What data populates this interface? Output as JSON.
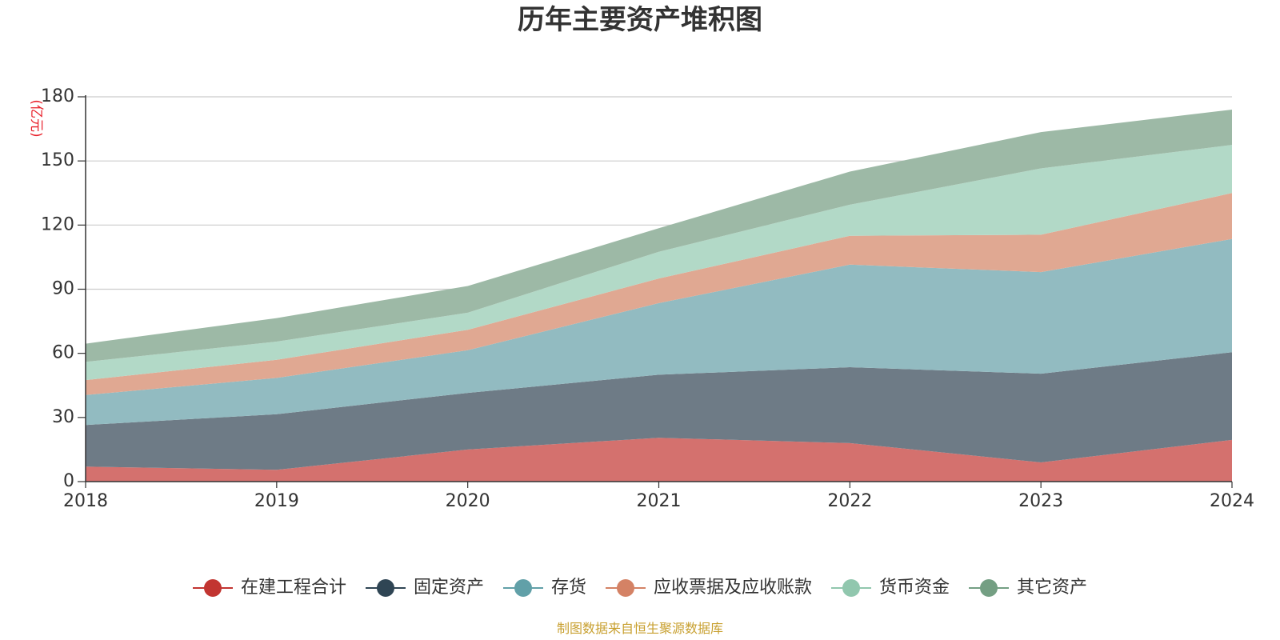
{
  "chart_data": {
    "type": "area",
    "stacked": true,
    "title": "历年主要资产堆积图",
    "ylabel": "(亿元)",
    "xlabel": "",
    "ylim": [
      0,
      180
    ],
    "yticks": [
      "0",
      "30",
      "60",
      "90",
      "120",
      "150",
      "180"
    ],
    "categories": [
      "2018",
      "2019",
      "2020",
      "2021",
      "2022",
      "2023",
      "2024"
    ],
    "series": [
      {
        "name": "在建工程合计",
        "color": "#c23531",
        "fill": "#d4716e",
        "values": [
          7,
          5.5,
          15,
          20.5,
          18,
          9,
          19.5
        ]
      },
      {
        "name": "固定资产",
        "color": "#2f4554",
        "fill": "#6e7b86",
        "values": [
          19.5,
          26,
          26.5,
          29.5,
          35.5,
          41.5,
          41
        ]
      },
      {
        "name": "存货",
        "color": "#61a0a8",
        "fill": "#92bbc1",
        "values": [
          14,
          17,
          20,
          33.5,
          48,
          47.5,
          53
        ]
      },
      {
        "name": "应收票据及应收账款",
        "color": "#d48265",
        "fill": "#e0a892",
        "values": [
          7,
          8.5,
          9.5,
          11.5,
          13.5,
          17.5,
          21.5
        ]
      },
      {
        "name": "货币资金",
        "color": "#91c7ae",
        "fill": "#b2d9c7",
        "values": [
          8.5,
          8.5,
          8,
          12.5,
          14.5,
          31,
          22.5
        ]
      },
      {
        "name": "其它资产",
        "color": "#749f83",
        "fill": "#9db9a6",
        "values": [
          8.5,
          11,
          12.5,
          11,
          15.5,
          17,
          16.5
        ]
      }
    ],
    "legend_position": "bottom-center",
    "grid": true
  },
  "source_text": "制图数据来自恒生聚源数据库"
}
